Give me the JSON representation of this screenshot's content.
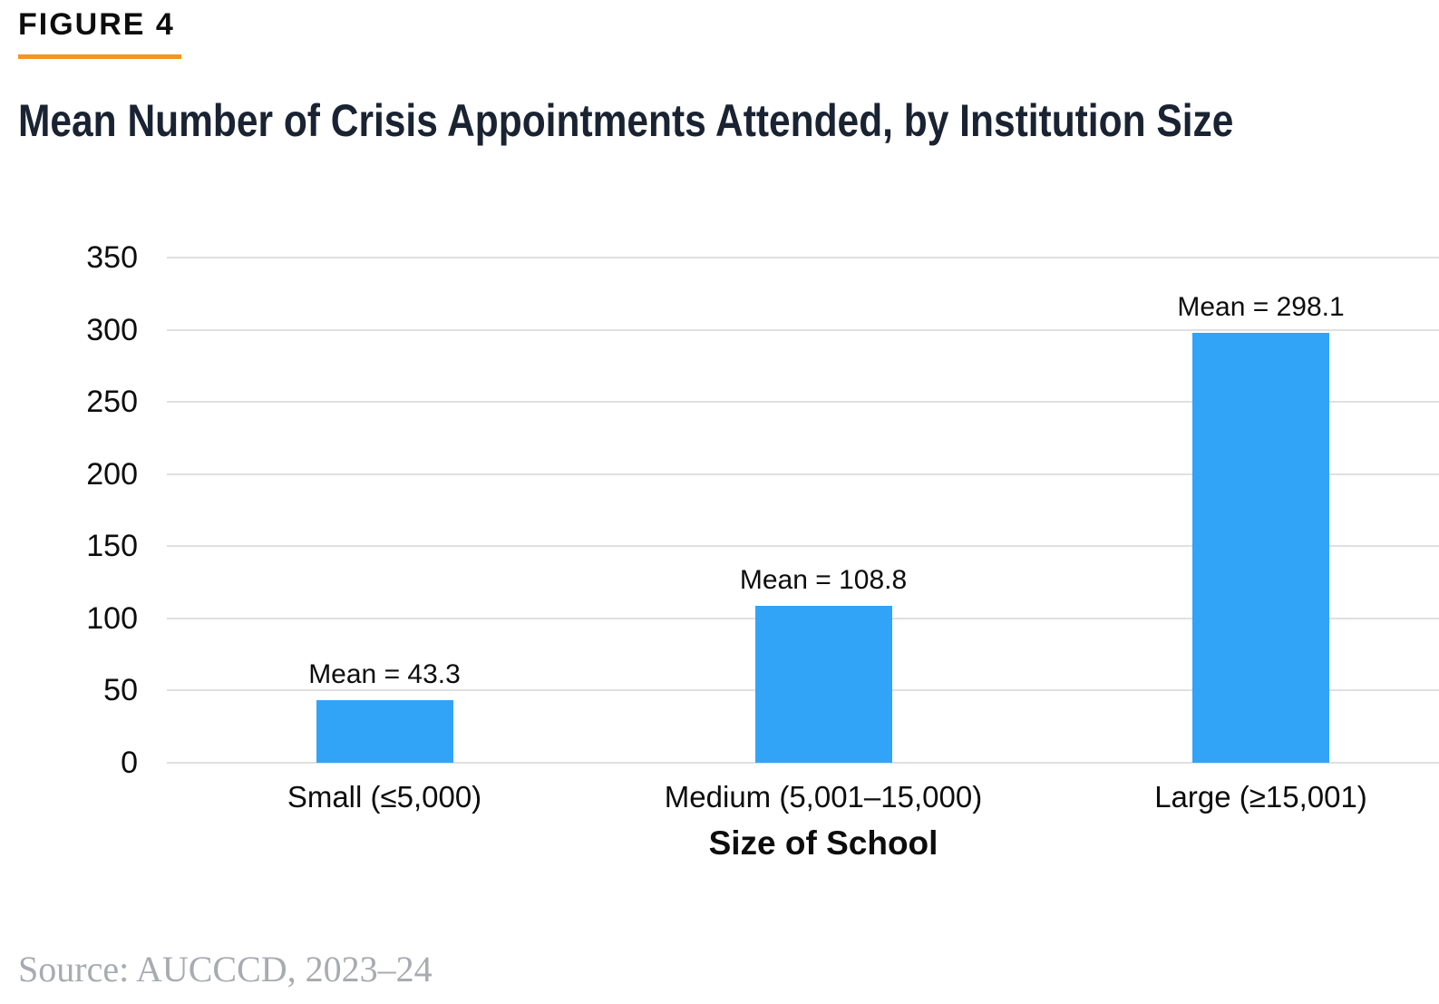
{
  "figure": {
    "label": "FIGURE 4",
    "title": "Mean Number of Crisis Appointments Attended, by Institution Size"
  },
  "source": {
    "text": "Source: AUCCCD, 2023–24"
  },
  "colors": {
    "background": "#ffffff",
    "bar": "#31a4f8",
    "accent_rule": "#f7941d",
    "title_text": "#1a2332",
    "axis_text": "#0d0d0d",
    "gridline": "#e0e0e0",
    "source_text": "#a8abb0"
  },
  "chart_data": {
    "type": "bar",
    "title": "Mean Number of Crisis Appointments Attended, by Institution Size",
    "categories": [
      "Small (≤5,000)",
      "Medium (5,001–15,000)",
      "Large (≥15,001)"
    ],
    "values": [
      43.3,
      108.8,
      298.1
    ],
    "bar_labels": [
      "Mean = 43.3",
      "Mean = 108.8",
      "Mean = 298.1"
    ],
    "xlabel": "Size of School",
    "ylabel": "",
    "ylim": [
      0,
      350
    ],
    "yticks": [
      0,
      50,
      100,
      150,
      200,
      250,
      300,
      350
    ],
    "grid": true,
    "legend": false,
    "bar_color": "#31a4f8"
  }
}
